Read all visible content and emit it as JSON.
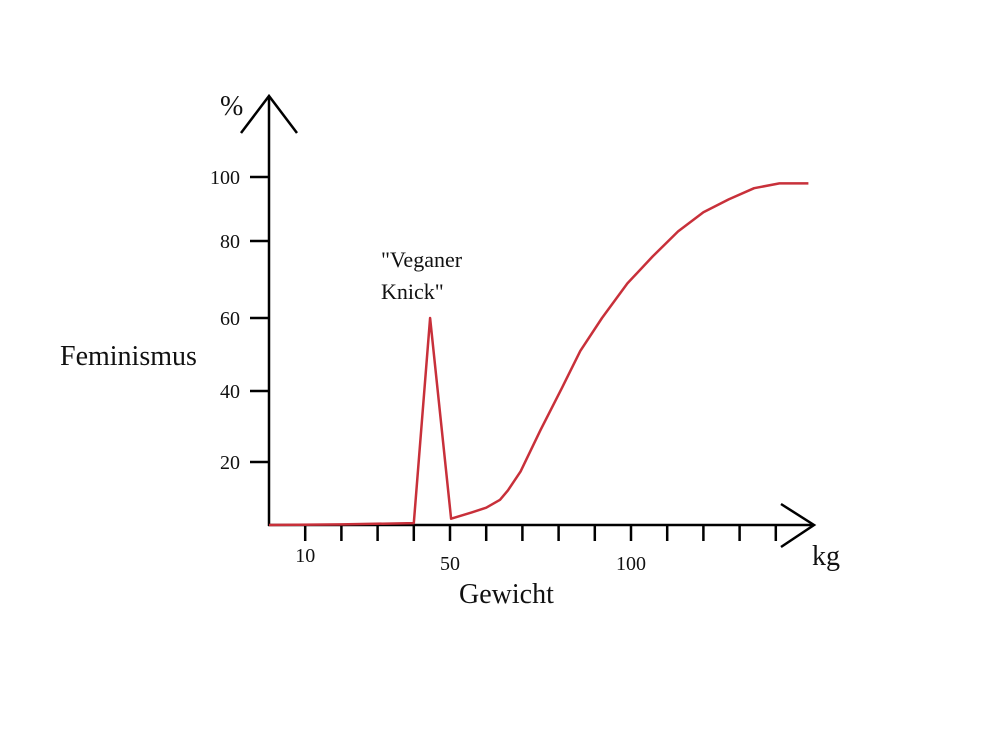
{
  "chart_data": {
    "type": "line",
    "title": "",
    "xlabel": "Gewicht",
    "ylabel": "Feminismus",
    "x_unit": "kg",
    "y_unit": "%",
    "xlim": [
      0,
      150
    ],
    "ylim": [
      0,
      110
    ],
    "grid": false,
    "x_ticks": [
      10,
      20,
      30,
      40,
      50,
      60,
      70,
      80,
      90,
      100,
      110,
      120,
      130,
      140
    ],
    "x_tick_labels": [
      {
        "value": 10,
        "label": "10"
      },
      {
        "value": 50,
        "label": "50"
      },
      {
        "value": 100,
        "label": "100"
      }
    ],
    "y_ticks": [
      {
        "value": 20,
        "label": "20"
      },
      {
        "value": 40,
        "label": "40"
      },
      {
        "value": 60,
        "label": "60"
      },
      {
        "value": 80,
        "label": "80"
      },
      {
        "value": 100,
        "label": "100"
      }
    ],
    "annotation": {
      "line1": "\"Veganer",
      "line2": "Knick\"",
      "x": 44,
      "y": 60
    },
    "series": [
      {
        "name": "Feminismus",
        "color": "#c8303a",
        "points": [
          [
            0,
            0
          ],
          [
            20,
            0.2
          ],
          [
            40,
            0.6
          ],
          [
            44.5,
            60
          ],
          [
            50.3,
            2
          ],
          [
            56,
            4
          ],
          [
            60,
            5.5
          ],
          [
            63.8,
            8
          ],
          [
            66,
            11
          ],
          [
            69.5,
            17
          ],
          [
            75,
            29
          ],
          [
            81,
            41
          ],
          [
            86,
            51
          ],
          [
            92,
            60
          ],
          [
            99,
            69
          ],
          [
            106,
            76
          ],
          [
            113,
            83
          ],
          [
            120,
            89
          ],
          [
            127,
            93
          ],
          [
            134,
            96.5
          ],
          [
            141,
            98
          ],
          [
            149,
            98
          ]
        ]
      }
    ]
  }
}
